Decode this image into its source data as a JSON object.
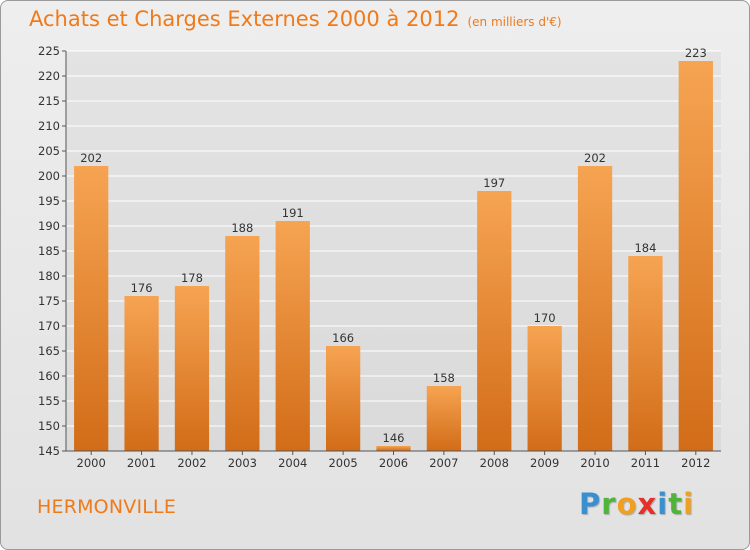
{
  "header": {
    "title": "Achats et Charges Externes 2000 à 2012",
    "unit": "(en milliers d'€)"
  },
  "footer": {
    "commune": "HERMONVILLE",
    "logo_letters": [
      {
        "char": "P",
        "color": "#3a8fd0"
      },
      {
        "char": "r",
        "color": "#4fb43a"
      },
      {
        "char": "o",
        "color": "#f0a020"
      },
      {
        "char": "x",
        "color": "#e8302a"
      },
      {
        "char": "i",
        "color": "#3a8fd0"
      },
      {
        "char": "t",
        "color": "#4fb43a"
      },
      {
        "char": "i",
        "color": "#f0a020"
      }
    ]
  },
  "colors": {
    "title": "#f07a1a",
    "bar_top": "#f6a452",
    "bar_bottom": "#d26c18",
    "grid": "#ffffff"
  },
  "chart_data": {
    "type": "bar",
    "title": "Achats et Charges Externes 2000 à 2012",
    "subtitle": "(en milliers d'€)",
    "xlabel": "",
    "ylabel": "",
    "categories": [
      "2000",
      "2001",
      "2002",
      "2003",
      "2004",
      "2005",
      "2006",
      "2007",
      "2008",
      "2009",
      "2010",
      "2011",
      "2012"
    ],
    "values": [
      202,
      176,
      178,
      188,
      191,
      166,
      146,
      158,
      197,
      170,
      202,
      184,
      223
    ],
    "ylim": [
      145,
      225
    ],
    "yticks": [
      145,
      150,
      155,
      160,
      165,
      170,
      175,
      180,
      185,
      190,
      195,
      200,
      205,
      210,
      215,
      220,
      225
    ],
    "grid": true,
    "data_labels": true
  }
}
